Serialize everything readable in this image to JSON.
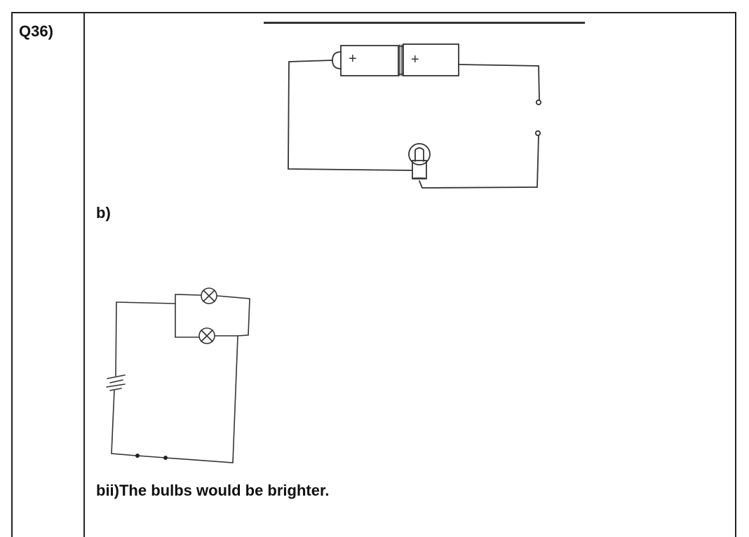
{
  "question": {
    "number": "Q36)"
  },
  "part_b": {
    "label": "b)"
  },
  "part_bii": {
    "answer": "bii)The bulbs would be brighter."
  },
  "diagram_a": {
    "battery_marks": [
      "+",
      "+"
    ]
  }
}
